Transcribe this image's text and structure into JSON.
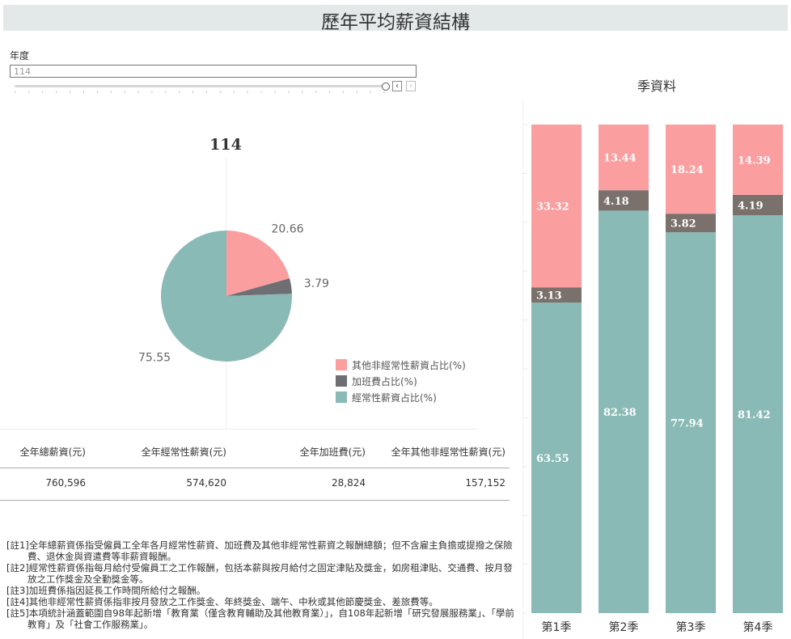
{
  "page": {
    "title": "歷年平均薪資結構"
  },
  "filter": {
    "label": "年度",
    "value": "114"
  },
  "pie": {
    "title": "114",
    "legend": [
      "其他非經常性薪資占比(%)",
      "加班費占比(%)",
      "經常性薪資占比(%)"
    ],
    "colors": [
      "#fb9e9f",
      "#6e6f73",
      "#8abab5"
    ]
  },
  "summary": {
    "headers": [
      "全年總薪資(元)",
      "全年經常性薪資(元)",
      "全年加班費(元)",
      "全年其他非經常性薪資(元)"
    ],
    "values": [
      "760,596",
      "574,620",
      "28,824",
      "157,152"
    ]
  },
  "notes": [
    "[註1]全年總薪資係指受僱員工全年各月經常性薪資、加班費及其他非經常性薪資之報酬總額；但不含雇主負擔或提撥之保險費、退休金與資遣費等非薪資報酬。",
    "[註2]經常性薪資係指每月給付受僱員工之工作報酬，包括本薪與按月給付之固定津貼及獎金，如房租津貼、交通費、按月發放之工作獎金及全勤獎金等。",
    "[註3]加班費係指因延長工作時間所給付之報酬。",
    "[註4]其他非經常性薪資係指非按月發放之工作獎金、年終獎金、端午、中秋或其他節慶獎金、差旅費等。",
    "[註5]本項統計涵蓋範圍自98年起新增「教育業（僅含教育輔助及其他教育業）」，自108年起新增「研究發展服務業」、「學前教育」及「社會工作服務業」。"
  ],
  "chart_data": [
    {
      "type": "pie",
      "title": "114",
      "slices": [
        {
          "name": "其他非經常性薪資占比(%)",
          "value": 20.66,
          "color": "#fb9e9f"
        },
        {
          "name": "加班費占比(%)",
          "value": 3.79,
          "color": "#6e6f73"
        },
        {
          "name": "經常性薪資占比(%)",
          "value": 75.55,
          "color": "#8abab5"
        }
      ]
    },
    {
      "type": "bar",
      "stacked": true,
      "title": "季資料",
      "categories": [
        "第1季",
        "第2季",
        "第3季",
        "第4季"
      ],
      "ylim": [
        0,
        100
      ],
      "series": [
        {
          "name": "經常性薪資占比(%)",
          "values": [
            63.55,
            82.38,
            77.94,
            81.42
          ],
          "color": "#8abab5"
        },
        {
          "name": "加班費占比(%)",
          "values": [
            3.13,
            4.18,
            3.82,
            4.19
          ],
          "color": "#7a706c"
        },
        {
          "name": "其他非經常性薪資占比(%)",
          "values": [
            33.32,
            13.44,
            18.24,
            14.39
          ],
          "color": "#fb9e9f"
        }
      ]
    }
  ]
}
